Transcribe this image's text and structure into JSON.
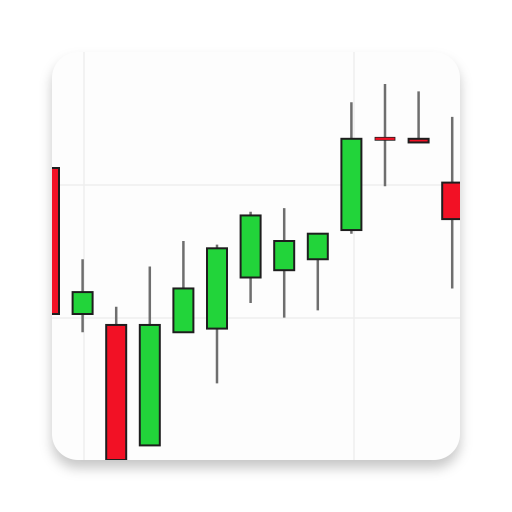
{
  "app_icon": {
    "name": "candlestick-chart-app-icon",
    "colors": {
      "tile": "#fdfdfd",
      "grid": "#eeeeee",
      "up": "#22d43a",
      "down": "#f21125",
      "wick": "#6e6e6e",
      "outline": "#1e1e1e"
    }
  },
  "chart_data": {
    "type": "candlestick",
    "title": "",
    "xlabel": "",
    "ylabel": "",
    "grid": true,
    "ylim": [
      0,
      100
    ],
    "candles": [
      {
        "open": 80,
        "close": 40,
        "high": 80,
        "low": 40
      },
      {
        "open": 40,
        "close": 46,
        "high": 55,
        "low": 35
      },
      {
        "open": 37,
        "close": 0,
        "high": 42,
        "low": 0
      },
      {
        "open": 4,
        "close": 37,
        "high": 53,
        "low": 4
      },
      {
        "open": 35,
        "close": 47,
        "high": 60,
        "low": 35
      },
      {
        "open": 36,
        "close": 58,
        "high": 59,
        "low": 21
      },
      {
        "open": 50,
        "close": 67,
        "high": 68,
        "low": 43
      },
      {
        "open": 52,
        "close": 60,
        "high": 69,
        "low": 39
      },
      {
        "open": 55,
        "close": 62,
        "high": 62,
        "low": 41
      },
      {
        "open": 63,
        "close": 88,
        "high": 98,
        "low": 62
      },
      {
        "open": 88,
        "close": 88,
        "high": 103,
        "low": 75
      },
      {
        "open": 88,
        "close": 87,
        "high": 101,
        "low": 87
      },
      {
        "open": 76,
        "close": 66,
        "high": 94,
        "low": 47
      }
    ]
  }
}
